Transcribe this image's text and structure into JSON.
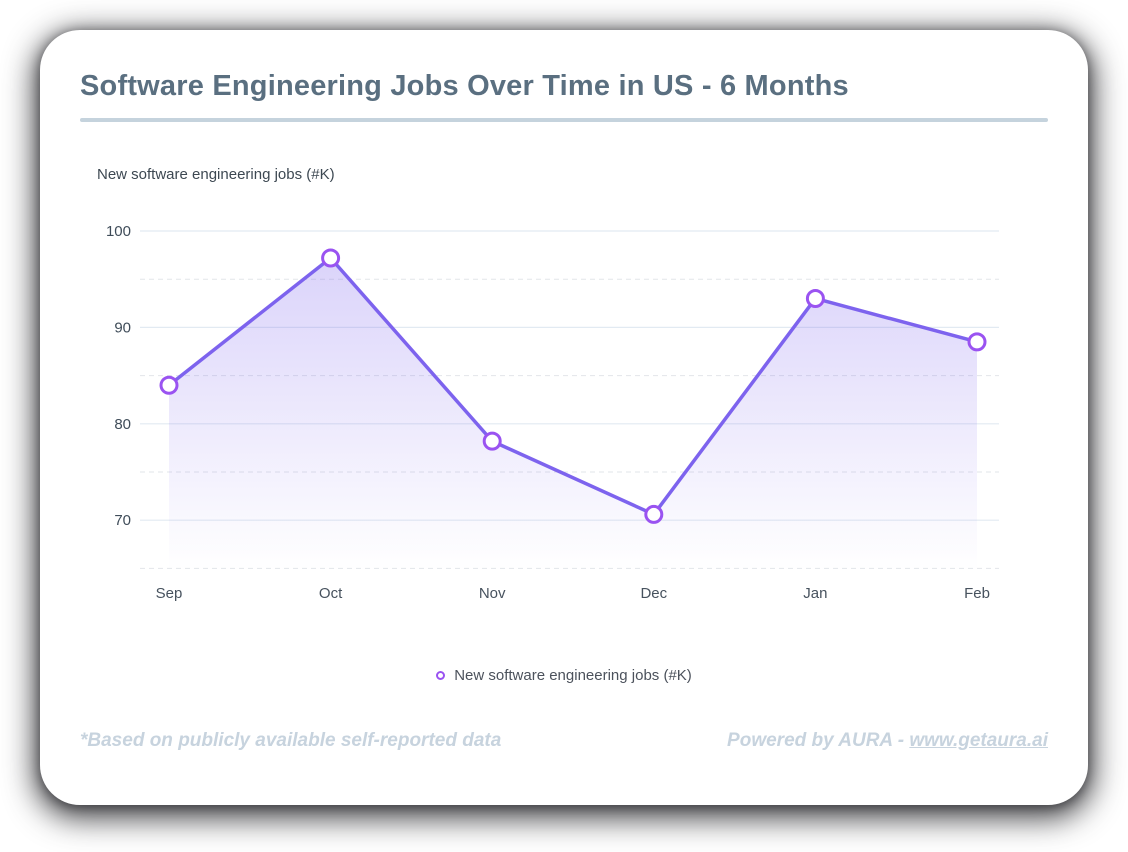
{
  "header": {
    "title": "Software Engineering Jobs Over Time in US - 6 Months"
  },
  "chart_data": {
    "type": "line",
    "title": "Software Engineering Jobs Over Time in US - 6 Months",
    "y_axis_title": "New software engineering jobs (#K)",
    "categories": [
      "Sep",
      "Oct",
      "Nov",
      "Dec",
      "Jan",
      "Feb"
    ],
    "series": [
      {
        "name": "New software engineering jobs (#K)",
        "values": [
          84,
          97.2,
          78.2,
          70.6,
          93,
          88.5
        ]
      }
    ],
    "y_ticks": [
      100,
      90,
      80,
      70
    ],
    "y_minor_ticks": [
      95,
      85,
      75,
      65
    ],
    "ylim": [
      65,
      100
    ],
    "grid": true,
    "legend_position": "bottom",
    "legend_label": "New software engineering jobs (#K)",
    "colors": {
      "line": "#7d63ee",
      "marker_stroke": "#9a53f1",
      "marker_fill": "#ffffff",
      "grid_major": "#e2eaf2",
      "grid_minor": "#e2e5e9",
      "title_text": "#5a6f80",
      "divider": "#c5d3dd",
      "footer_text": "#c7d3de"
    }
  },
  "footer": {
    "left_note": "*Based on publicly available self-reported data",
    "powered_by_prefix": "Powered by AURA - ",
    "link_text": "www.getaura.ai"
  }
}
